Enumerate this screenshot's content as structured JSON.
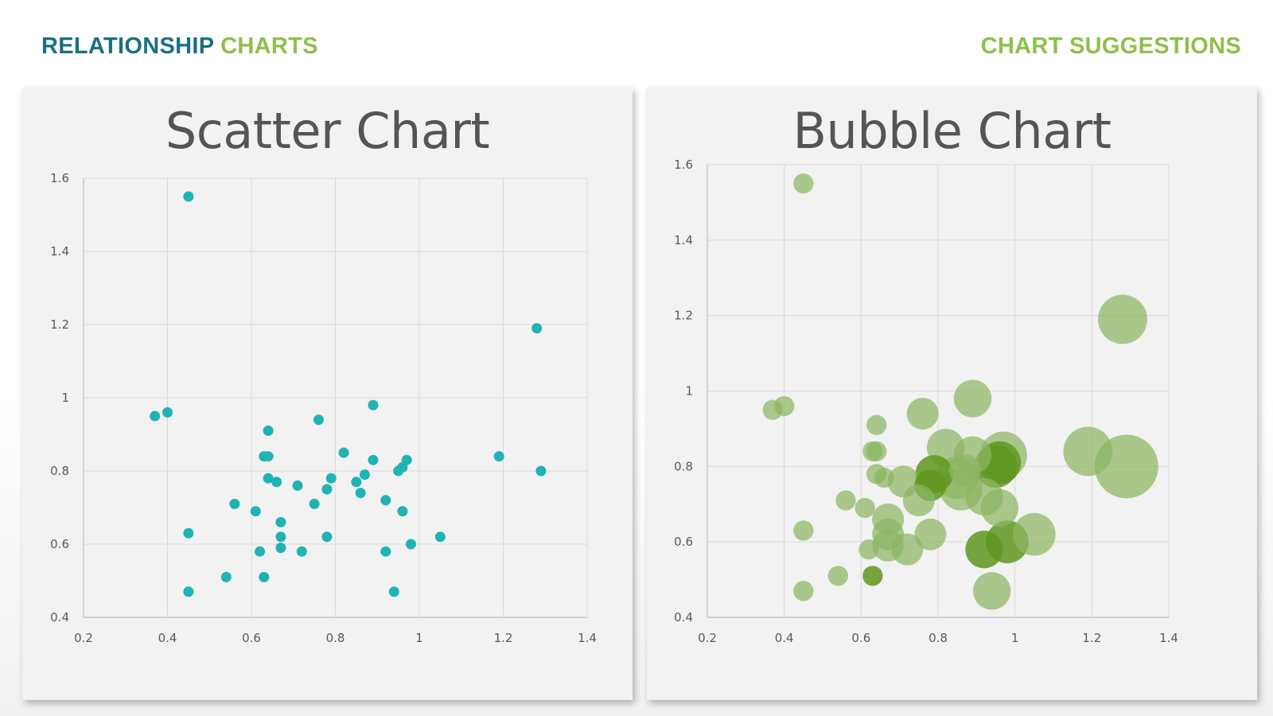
{
  "header": {
    "left_word1": "RELATIONSHIP",
    "left_word2": "CHARTS",
    "right": "CHART SUGGESTIONS",
    "colors": {
      "teal": "#1a6f86",
      "green": "#8dc04a"
    }
  },
  "chart_data": [
    {
      "type": "scatter",
      "title": "Scatter Chart",
      "xlim": [
        0.2,
        1.4
      ],
      "ylim": [
        0.4,
        1.6
      ],
      "x_ticks": [
        "0.2",
        "0.4",
        "0.6",
        "0.8",
        "1",
        "1.2",
        "1.4"
      ],
      "y_ticks": [
        "0.4",
        "0.6",
        "0.8",
        "1",
        "1.2",
        "1.4",
        "1.6"
      ],
      "grid": true,
      "color": "#1fb3b5",
      "points": [
        [
          0.45,
          1.55
        ],
        [
          0.37,
          0.95
        ],
        [
          0.4,
          0.96
        ],
        [
          0.64,
          0.91
        ],
        [
          0.76,
          0.94
        ],
        [
          0.89,
          0.98
        ],
        [
          0.63,
          0.84
        ],
        [
          0.64,
          0.84
        ],
        [
          0.82,
          0.85
        ],
        [
          0.89,
          0.83
        ],
        [
          0.97,
          0.83
        ],
        [
          0.96,
          0.81
        ],
        [
          0.95,
          0.8
        ],
        [
          1.19,
          0.84
        ],
        [
          1.28,
          1.19
        ],
        [
          1.29,
          0.8
        ],
        [
          0.64,
          0.78
        ],
        [
          0.66,
          0.77
        ],
        [
          0.71,
          0.76
        ],
        [
          0.79,
          0.78
        ],
        [
          0.78,
          0.75
        ],
        [
          0.87,
          0.79
        ],
        [
          0.85,
          0.77
        ],
        [
          0.86,
          0.74
        ],
        [
          0.75,
          0.71
        ],
        [
          0.56,
          0.71
        ],
        [
          0.61,
          0.69
        ],
        [
          0.92,
          0.72
        ],
        [
          0.96,
          0.69
        ],
        [
          0.67,
          0.66
        ],
        [
          0.67,
          0.62
        ],
        [
          0.78,
          0.62
        ],
        [
          0.45,
          0.63
        ],
        [
          0.62,
          0.58
        ],
        [
          0.67,
          0.59
        ],
        [
          0.72,
          0.58
        ],
        [
          0.92,
          0.58
        ],
        [
          0.98,
          0.6
        ],
        [
          1.05,
          0.62
        ],
        [
          0.54,
          0.51
        ],
        [
          0.63,
          0.51
        ],
        [
          0.45,
          0.47
        ],
        [
          0.94,
          0.47
        ]
      ]
    },
    {
      "type": "bubble",
      "title": "Bubble Chart",
      "xlim": [
        0.2,
        1.4
      ],
      "ylim": [
        0.4,
        1.6
      ],
      "x_ticks": [
        "0.2",
        "0.4",
        "0.6",
        "0.8",
        "1",
        "1.2",
        "1.4"
      ],
      "y_ticks": [
        "0.4",
        "0.6",
        "0.8",
        "1",
        "1.2",
        "1.4",
        "1.6"
      ],
      "grid": true,
      "color": "#8cb562",
      "highlight_color": "#5f961f",
      "bubbles": [
        {
          "x": 0.45,
          "y": 1.55,
          "size": 2
        },
        {
          "x": 0.37,
          "y": 0.95,
          "size": 2
        },
        {
          "x": 0.4,
          "y": 0.96,
          "size": 2
        },
        {
          "x": 0.64,
          "y": 0.91,
          "size": 2
        },
        {
          "x": 0.76,
          "y": 0.94,
          "size": 5
        },
        {
          "x": 0.89,
          "y": 0.98,
          "size": 7
        },
        {
          "x": 0.63,
          "y": 0.84,
          "size": 2
        },
        {
          "x": 0.64,
          "y": 0.84,
          "size": 2
        },
        {
          "x": 0.82,
          "y": 0.85,
          "size": 7
        },
        {
          "x": 0.89,
          "y": 0.83,
          "size": 7
        },
        {
          "x": 0.97,
          "y": 0.83,
          "size": 11
        },
        {
          "x": 0.96,
          "y": 0.81,
          "size": 9,
          "highlight": true
        },
        {
          "x": 0.95,
          "y": 0.8,
          "size": 9,
          "highlight": true
        },
        {
          "x": 1.19,
          "y": 0.84,
          "size": 12
        },
        {
          "x": 1.28,
          "y": 1.19,
          "size": 12
        },
        {
          "x": 1.29,
          "y": 0.8,
          "size": 20
        },
        {
          "x": 0.64,
          "y": 0.78,
          "size": 2
        },
        {
          "x": 0.66,
          "y": 0.77,
          "size": 2
        },
        {
          "x": 0.71,
          "y": 0.76,
          "size": 5
        },
        {
          "x": 0.79,
          "y": 0.78,
          "size": 7,
          "highlight": true
        },
        {
          "x": 0.78,
          "y": 0.75,
          "size": 5,
          "highlight": true
        },
        {
          "x": 0.87,
          "y": 0.79,
          "size": 5
        },
        {
          "x": 0.85,
          "y": 0.77,
          "size": 9
        },
        {
          "x": 0.86,
          "y": 0.74,
          "size": 9
        },
        {
          "x": 0.75,
          "y": 0.71,
          "size": 5
        },
        {
          "x": 0.56,
          "y": 0.71,
          "size": 2
        },
        {
          "x": 0.61,
          "y": 0.69,
          "size": 2
        },
        {
          "x": 0.92,
          "y": 0.72,
          "size": 7
        },
        {
          "x": 0.96,
          "y": 0.69,
          "size": 7
        },
        {
          "x": 0.67,
          "y": 0.66,
          "size": 5
        },
        {
          "x": 0.67,
          "y": 0.62,
          "size": 5
        },
        {
          "x": 0.78,
          "y": 0.62,
          "size": 5
        },
        {
          "x": 0.45,
          "y": 0.63,
          "size": 2
        },
        {
          "x": 0.62,
          "y": 0.58,
          "size": 2
        },
        {
          "x": 0.67,
          "y": 0.59,
          "size": 5
        },
        {
          "x": 0.72,
          "y": 0.58,
          "size": 5
        },
        {
          "x": 0.92,
          "y": 0.58,
          "size": 7,
          "highlight": true
        },
        {
          "x": 0.98,
          "y": 0.6,
          "size": 9,
          "highlight": true
        },
        {
          "x": 1.05,
          "y": 0.62,
          "size": 9
        },
        {
          "x": 0.54,
          "y": 0.51,
          "size": 2
        },
        {
          "x": 0.63,
          "y": 0.51,
          "size": 2,
          "highlight": true
        },
        {
          "x": 0.45,
          "y": 0.47,
          "size": 2
        },
        {
          "x": 0.94,
          "y": 0.47,
          "size": 7
        }
      ]
    }
  ]
}
